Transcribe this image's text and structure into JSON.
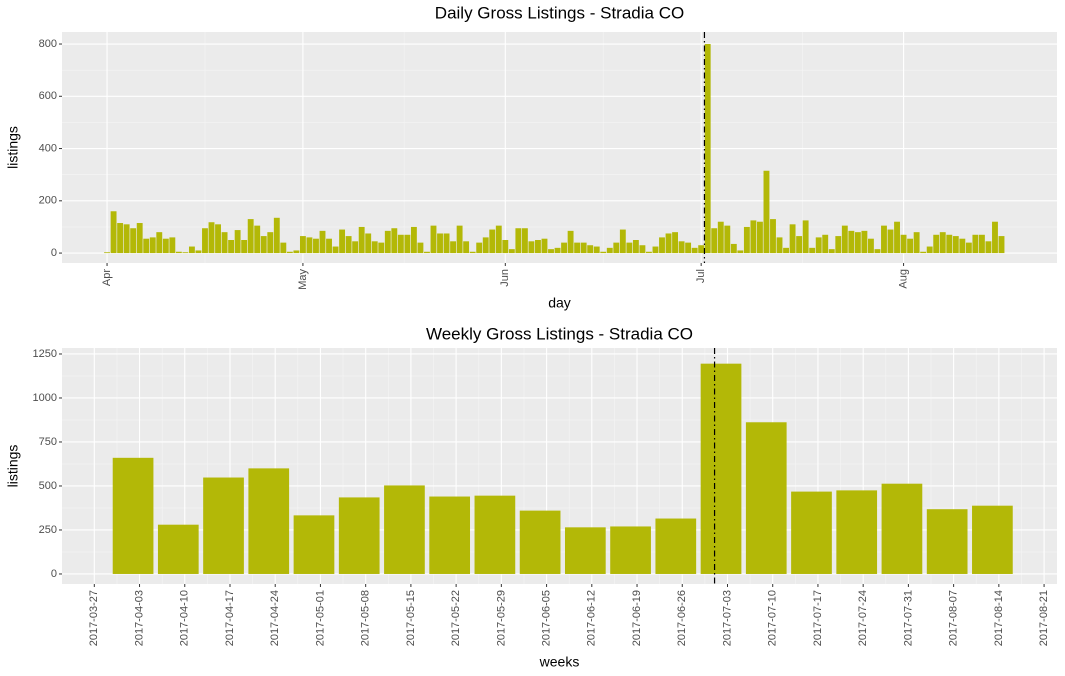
{
  "chart_data": [
    {
      "type": "bar",
      "title": "Daily Gross Listings - Stradia CO",
      "x_label": "day",
      "y_label": "listings",
      "color": "#b3b807",
      "x": [
        0,
        1,
        2,
        3,
        4,
        5,
        6,
        7,
        8,
        9,
        10,
        11,
        12,
        13,
        14,
        15,
        16,
        17,
        18,
        19,
        20,
        21,
        22,
        23,
        24,
        25,
        26,
        27,
        28,
        29,
        30,
        31,
        32,
        33,
        34,
        35,
        36,
        37,
        38,
        39,
        40,
        41,
        42,
        43,
        44,
        45,
        46,
        47,
        48,
        49,
        50,
        51,
        52,
        53,
        54,
        55,
        56,
        57,
        58,
        59,
        60,
        61,
        62,
        63,
        64,
        65,
        66,
        67,
        68,
        69,
        70,
        71,
        72,
        73,
        74,
        75,
        76,
        77,
        78,
        79,
        80,
        81,
        82,
        83,
        84,
        85,
        86,
        87,
        88,
        89,
        90,
        91,
        92,
        93,
        94,
        95,
        96,
        97,
        98,
        99,
        100,
        101,
        102,
        103,
        104,
        105,
        106,
        107,
        108,
        109,
        110,
        111,
        112,
        113,
        114,
        115,
        116,
        117,
        118,
        119,
        120,
        121,
        122,
        123,
        124,
        125,
        126,
        127,
        128,
        129,
        130,
        131,
        132,
        133,
        134,
        135,
        136,
        137
      ],
      "values": [
        3,
        160,
        115,
        110,
        95,
        115,
        55,
        60,
        80,
        55,
        60,
        5,
        3,
        25,
        10,
        95,
        118,
        110,
        80,
        50,
        88,
        50,
        130,
        105,
        65,
        80,
        135,
        40,
        5,
        10,
        65,
        60,
        55,
        85,
        55,
        25,
        90,
        65,
        45,
        100,
        75,
        45,
        40,
        85,
        95,
        70,
        70,
        100,
        40,
        5,
        105,
        75,
        75,
        45,
        105,
        45,
        5,
        40,
        60,
        90,
        105,
        50,
        15,
        95,
        95,
        45,
        50,
        55,
        15,
        20,
        40,
        85,
        40,
        40,
        30,
        25,
        5,
        20,
        40,
        90,
        40,
        50,
        30,
        5,
        25,
        60,
        75,
        80,
        45,
        40,
        20,
        30,
        800,
        95,
        120,
        105,
        35,
        10,
        100,
        125,
        120,
        315,
        130,
        60,
        20,
        110,
        65,
        125,
        20,
        60,
        70,
        15,
        65,
        105,
        85,
        80,
        85,
        55,
        15,
        105,
        90,
        120,
        70,
        55,
        80,
        5,
        25,
        70,
        80,
        70,
        65,
        55,
        40,
        70,
        70,
        45,
        120,
        65
      ],
      "xlim": [
        -6.9,
        145.5
      ],
      "xticks": [
        {
          "value": 0,
          "label": "Apr"
        },
        {
          "value": 30,
          "label": "May"
        },
        {
          "value": 61,
          "label": "Jun"
        },
        {
          "value": 91,
          "label": "Jul"
        },
        {
          "value": 122,
          "label": "Aug"
        }
      ],
      "ylim": [
        -38,
        846
      ],
      "yticks": [
        0,
        200,
        400,
        600,
        800
      ],
      "vline": 91.5,
      "grid": true
    },
    {
      "type": "bar",
      "title": "Weekly Gross Listings - Stradia CO",
      "x_label": "weeks",
      "y_label": "listings",
      "color": "#b3b807",
      "x": [
        "2017-04-02",
        "2017-04-09",
        "2017-04-16",
        "2017-04-23",
        "2017-04-30",
        "2017-05-07",
        "2017-05-14",
        "2017-05-21",
        "2017-05-28",
        "2017-06-04",
        "2017-06-11",
        "2017-06-18",
        "2017-06-25",
        "2017-07-02",
        "2017-07-09",
        "2017-07-16",
        "2017-07-23",
        "2017-07-30",
        "2017-08-06",
        "2017-08-13"
      ],
      "values": [
        660,
        280,
        548,
        600,
        333,
        435,
        503,
        440,
        445,
        360,
        265,
        270,
        315,
        1195,
        862,
        468,
        475,
        513,
        368,
        388
      ],
      "xlim": [
        "2017-03-22",
        "2017-08-23"
      ],
      "xticks": [
        "2017-03-27",
        "2017-04-03",
        "2017-04-10",
        "2017-04-17",
        "2017-04-24",
        "2017-05-01",
        "2017-05-08",
        "2017-05-15",
        "2017-05-22",
        "2017-05-29",
        "2017-06-05",
        "2017-06-12",
        "2017-06-19",
        "2017-06-26",
        "2017-07-03",
        "2017-07-10",
        "2017-07-17",
        "2017-07-24",
        "2017-07-31",
        "2017-08-07",
        "2017-08-14",
        "2017-08-21"
      ],
      "ylim": [
        -57,
        1284
      ],
      "yticks": [
        0,
        250,
        500,
        750,
        1000,
        1250
      ],
      "vline": "2017-07-01",
      "grid": true
    }
  ]
}
